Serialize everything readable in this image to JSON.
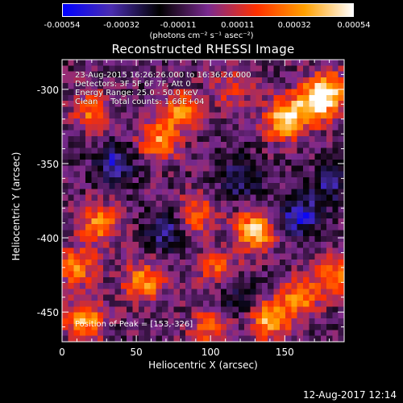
{
  "colorbar": {
    "ticks": [
      "-0.00054",
      "-0.00032",
      "-0.00011",
      "0.00011",
      "0.00032",
      "0.00054"
    ],
    "tick_values": [
      -0.00054,
      -0.00032,
      -0.00011,
      0.00011,
      0.00032,
      0.00054
    ],
    "units": "(photons cm⁻² s⁻¹ asec⁻²)",
    "range": [
      -0.00054,
      0.00054
    ],
    "colormap": [
      "#0000ff",
      "#4a2db0",
      "#000000",
      "#7a2a90",
      "#ff3000",
      "#ffa000",
      "#ffffff"
    ]
  },
  "info": {
    "time_range": "23-Aug-2015 16:26:26.000 to 16:36:26.000",
    "detectors": "Detectors: 3F 5F 6F 7F, Att 0",
    "energy": "Energy Range: 25.0 - 50.0 keV",
    "clean": "Clean     Total counts: 1.66E+04",
    "peak": "Position of Peak = [153,-326]"
  },
  "footer": {
    "date": "12-Aug-2017 12:14"
  },
  "chart_data": {
    "type": "heatmap",
    "title": "Reconstructed RHESSI Image",
    "xlabel": "Heliocentric X (arcsec)",
    "ylabel": "Heliocentric Y (arcsec)",
    "xlim": [
      0,
      190
    ],
    "ylim": [
      -470,
      -280
    ],
    "xticks": [
      0,
      50,
      100,
      150
    ],
    "yticks": [
      -300,
      -350,
      -400,
      -450
    ],
    "value_range": [
      -0.00054,
      0.00054
    ],
    "peak": {
      "x": 153,
      "y": -326
    },
    "hotspots": [
      {
        "x": 130,
        "y": -395,
        "v": 0.0005
      },
      {
        "x": 150,
        "y": -320,
        "v": 0.00054
      },
      {
        "x": 170,
        "y": -310,
        "v": 0.00052
      },
      {
        "x": 180,
        "y": -300,
        "v": 0.0004
      },
      {
        "x": 65,
        "y": -335,
        "v": 0.00038
      },
      {
        "x": 80,
        "y": -315,
        "v": 0.00035
      },
      {
        "x": 20,
        "y": -315,
        "v": 0.0003
      },
      {
        "x": 25,
        "y": -390,
        "v": 0.00036
      },
      {
        "x": 10,
        "y": -420,
        "v": 0.00034
      },
      {
        "x": 55,
        "y": -430,
        "v": 0.0004
      },
      {
        "x": 105,
        "y": -420,
        "v": 0.00025
      },
      {
        "x": 140,
        "y": -455,
        "v": 0.00045
      },
      {
        "x": 160,
        "y": -440,
        "v": 0.00038
      },
      {
        "x": 185,
        "y": -425,
        "v": 0.00032
      },
      {
        "x": 15,
        "y": -455,
        "v": 0.00042
      },
      {
        "x": 90,
        "y": -385,
        "v": 0.0003
      },
      {
        "x": 115,
        "y": -300,
        "v": 0.0002
      },
      {
        "x": 100,
        "y": -460,
        "v": 0.0003
      }
    ],
    "coldspots": [
      {
        "x": 160,
        "y": -385,
        "v": -0.0004
      },
      {
        "x": 120,
        "y": -360,
        "v": -0.0003
      },
      {
        "x": 35,
        "y": -350,
        "v": -0.00035
      },
      {
        "x": 70,
        "y": -395,
        "v": -0.0003
      },
      {
        "x": 120,
        "y": -440,
        "v": -0.0002
      },
      {
        "x": 180,
        "y": -365,
        "v": -0.00025
      }
    ]
  }
}
